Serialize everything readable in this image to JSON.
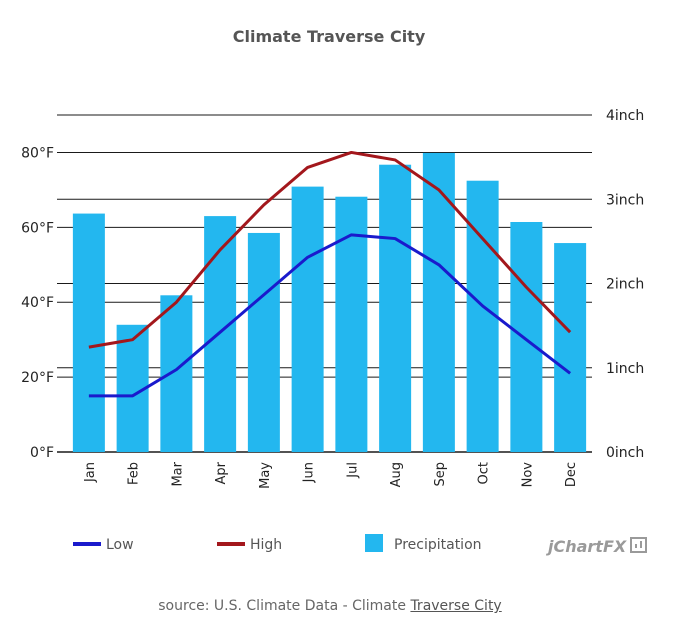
{
  "chart_data": {
    "type": "bar",
    "title": "Climate Traverse City",
    "categories": [
      "Jan",
      "Feb",
      "Mar",
      "Apr",
      "May",
      "Jun",
      "Jul",
      "Aug",
      "Sep",
      "Oct",
      "Nov",
      "Dec"
    ],
    "series": [
      {
        "name": "Low",
        "type": "line",
        "axis": "left",
        "color": "#1a1acc",
        "values": [
          15,
          15,
          22,
          32,
          42,
          52,
          58,
          57,
          50,
          39,
          30,
          21
        ]
      },
      {
        "name": "High",
        "type": "line",
        "axis": "left",
        "color": "#a3171c",
        "values": [
          28,
          30,
          40,
          54,
          66,
          76,
          80,
          78,
          70,
          57,
          44,
          32
        ]
      },
      {
        "name": "Precipitation",
        "type": "bar",
        "axis": "right",
        "color": "#23b7ef",
        "values": [
          2.83,
          1.51,
          1.86,
          2.8,
          2.6,
          3.15,
          3.03,
          3.41,
          3.55,
          3.22,
          2.73,
          2.48
        ]
      }
    ],
    "y_left": {
      "ticks": [
        "0°F",
        "20°F",
        "40°F",
        "60°F",
        "80°F"
      ],
      "range": [
        0,
        90
      ]
    },
    "y_right": {
      "ticks": [
        "0inch",
        "1inch",
        "2inch",
        "3inch",
        "4inch"
      ],
      "range": [
        0,
        4
      ]
    },
    "legend": {
      "items": [
        "Low",
        "High",
        "Precipitation"
      ],
      "position": "bottom"
    },
    "grid": true
  },
  "branding": {
    "logo": "jChartFX"
  },
  "source": {
    "prefix": "source: U.S. Climate Data - Climate ",
    "link": "Traverse City"
  }
}
